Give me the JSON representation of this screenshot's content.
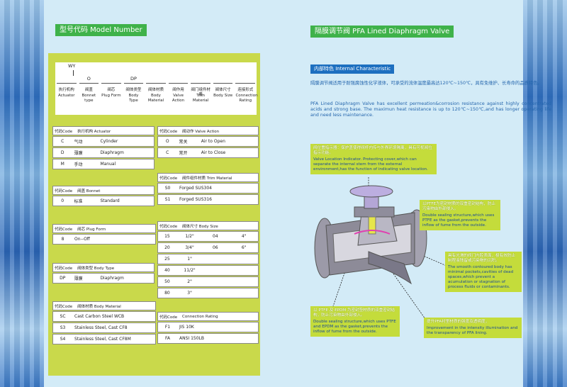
{
  "left_page": {
    "heading": "型号代码  Model Number",
    "model_code": {
      "prefix": "WY",
      "codes": [
        null,
        "O",
        null,
        "DP",
        null,
        null,
        null,
        null,
        null
      ],
      "columns": [
        {
          "cn": "执行机构",
          "en": "Actuator"
        },
        {
          "cn": "阀盖",
          "en": "Bonnet type"
        },
        {
          "cn": "阀芯",
          "en": "Plug Form"
        },
        {
          "cn": "阀体类型",
          "en": "Body Type"
        },
        {
          "cn": "阀体材质",
          "en": "Body Material"
        },
        {
          "cn": "阀作用",
          "en": "Valve Action"
        },
        {
          "cn": "阀门组件材质",
          "en": "Trim Material"
        },
        {
          "cn": "阀体尺寸",
          "en": "Body Size"
        },
        {
          "cn": "连接形式",
          "en": "Connection Rating"
        }
      ]
    },
    "tables": {
      "actuator": {
        "header": [
          "代码Code",
          "执行机构  Actuator"
        ],
        "rows": [
          [
            "C",
            "气动",
            "Cylinder"
          ],
          [
            "D",
            "薄膜",
            "Diaphragm"
          ],
          [
            "M",
            "手动",
            "Manual"
          ]
        ]
      },
      "valve_action": {
        "header": [
          "代码Code",
          "阀动作  Valve Action"
        ],
        "rows": [
          [
            "O",
            "常关",
            "Air to Open"
          ],
          [
            "C",
            "常开",
            "Air to Close"
          ]
        ]
      },
      "bonnet": {
        "header": [
          "代码Code",
          "阀盖  Bonnet"
        ],
        "rows": [
          [
            "0",
            "标准",
            "Standard"
          ]
        ]
      },
      "trim": {
        "header": [
          "代码Code",
          "阀件组件材质  Trim Material"
        ],
        "rows": [
          [
            "S0",
            "Forged SUS304"
          ],
          [
            "S1",
            "Forged SUS316"
          ]
        ]
      },
      "plug": {
        "header": [
          "代码Code",
          "阀芯  Plug Form"
        ],
        "rows": [
          [
            "8",
            "On--Off"
          ]
        ]
      },
      "body_size": {
        "header": [
          "代码Code",
          "阀体尺寸  Body Size"
        ],
        "rows": [
          [
            "15",
            "1/2\"",
            "04",
            "4\""
          ],
          [
            "20",
            "3/4\"",
            "06",
            "6\""
          ],
          [
            "25",
            "1\""
          ],
          [
            "40",
            "11/2\""
          ],
          [
            "50",
            "2\""
          ],
          [
            "80",
            "3\""
          ]
        ]
      },
      "body_type": {
        "header": [
          "代码Code",
          "阀体类型  Body Type"
        ],
        "rows": [
          [
            "DP",
            "薄膜",
            "Diaphragm"
          ]
        ]
      },
      "body_material": {
        "header": [
          "代码Code",
          "阀体材质  Body Material"
        ],
        "rows": [
          [
            "SC",
            "Cast Carbon Steel WCB"
          ],
          [
            "S3",
            "Stainless Steel, Cast CF8"
          ],
          [
            "S4",
            "Stainless Steel, Cast CF8M"
          ]
        ]
      },
      "connection": {
        "header": [
          "代码Code",
          "Connection Rating"
        ],
        "rows": [
          [
            "F1",
            "JIS 10K"
          ],
          [
            "FA",
            "ANSI 150LB"
          ]
        ]
      }
    }
  },
  "right_page": {
    "heading": "隔膜调节阀  PFA Lined Diaphragm Valve",
    "subheading": "内部特色  Internal Characteristic",
    "intro_cn": "隔膜调节阀适用于耐强腐蚀性化学液体，可承受的流体温度最高达120℃~150℃，具有免维护、长寿命的品质特色。",
    "intro_en": "PFA Lined Diaphragm Valve has excellent permeation&corrosion resistance against highly concentrated acids and strong base. The maximun heat resistance is up to 120℃~150℃,and has longer operating life and need less maintenance.",
    "callouts": [
      {
        "cn": "阀位置指示器：保护盖使得阀杆内传与外界环境隔离，具有可视阀位指示功能。",
        "en": "Valve Location Indicator. Protecting cover,which can separate the internal stem from the external environment,has the function of indicating valve location."
      },
      {
        "cn": "以PTFE为密封材质的双重密封结构，防止污染物由外部侵入。",
        "en": "Double sealing structure,which uses PTFE as the gasket,prevents the inflow of fume from the outside."
      },
      {
        "cn": "具有光滑的阀门内腔表面，极有效防止制程液残留或污染物的沉积。",
        "en": "The smooth contoured body has minimal pockets,cavities of dead spaces,which prevent a acumulation or stagnation of process fluids or contaminants."
      },
      {
        "cn": "以 PTFE 及 EPDM 为密封垫材质的双重密封结构，防止污染物由外部侵入。",
        "en": "Double sealing structure,which uses PTFE and EPDM as the gasket,prevents the inflow of fume from the outside."
      },
      {
        "cn": "提升PFA衬里材质的强度及透明度，",
        "en": "Improvement in the intensity illumination and the transparency of PFA lining."
      }
    ]
  }
}
